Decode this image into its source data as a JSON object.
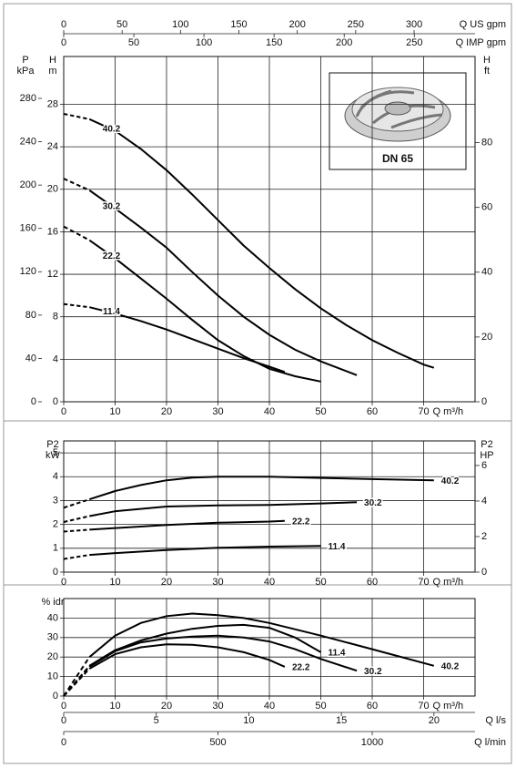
{
  "chart_data": [
    {
      "type": "line",
      "annotation": "DN 65",
      "x_label": "Q m³/h",
      "y_label": [
        "H",
        "m"
      ],
      "xlim": [
        0,
        80
      ],
      "xticks": [
        0,
        10,
        20,
        30,
        40,
        50,
        60,
        70
      ],
      "ylim": [
        0,
        32.5
      ],
      "yticks": [
        0,
        4,
        8,
        12,
        16,
        20,
        24,
        28
      ],
      "grid": true,
      "first_segment_dashed": true,
      "series_label_position": "start",
      "secondary_axes": [
        {
          "label": [
            "P",
            "kPa"
          ],
          "position": "left-outer",
          "lim": [
            0,
            318.7
          ],
          "ticks": [
            0,
            40,
            80,
            120,
            160,
            200,
            240,
            280
          ]
        },
        {
          "label": [
            "H",
            "ft"
          ],
          "position": "right",
          "lim": [
            0,
            106.6
          ],
          "ticks": [
            0,
            20,
            40,
            60,
            80
          ]
        },
        {
          "label": [
            "Q US gpm"
          ],
          "position": "top",
          "lim": [
            0,
            352.2
          ],
          "ticks": [
            0,
            50,
            100,
            150,
            200,
            250,
            300
          ]
        },
        {
          "label": [
            "Q IMP gpm"
          ],
          "position": "top-2",
          "lim": [
            0,
            293.3
          ],
          "ticks": [
            0,
            50,
            100,
            150,
            200,
            250
          ]
        }
      ],
      "series": [
        {
          "name": "40.2",
          "color": "#000000",
          "x": [
            0,
            5,
            10,
            15,
            20,
            25,
            30,
            35,
            40,
            45,
            50,
            55,
            60,
            65,
            70,
            72
          ],
          "values": [
            27.1,
            26.6,
            25.5,
            23.8,
            21.8,
            19.5,
            17.1,
            14.7,
            12.6,
            10.6,
            8.8,
            7.2,
            5.8,
            4.6,
            3.5,
            3.2
          ]
        },
        {
          "name": "30.2",
          "color": "#000000",
          "x": [
            0,
            5,
            10,
            15,
            20,
            25,
            30,
            35,
            40,
            45,
            50,
            57
          ],
          "values": [
            21,
            19.9,
            18.2,
            16.4,
            14.5,
            12.2,
            10,
            8,
            6.3,
            4.9,
            3.8,
            2.5
          ]
        },
        {
          "name": "22.2",
          "color": "#000000",
          "x": [
            0,
            5,
            10,
            15,
            20,
            25,
            30,
            35,
            40,
            45,
            50
          ],
          "values": [
            16.5,
            15.2,
            13.5,
            11.6,
            9.7,
            7.7,
            5.8,
            4.3,
            3.1,
            2.4,
            1.9
          ]
        },
        {
          "name": "11.4",
          "color": "#000000",
          "x": [
            0,
            5,
            10,
            15,
            20,
            25,
            30,
            35,
            40,
            43
          ],
          "values": [
            9.2,
            8.9,
            8.3,
            7.6,
            6.8,
            5.9,
            5,
            4.1,
            3.3,
            2.8
          ]
        }
      ]
    },
    {
      "type": "line",
      "x_label": "Q m³/h",
      "y_label": [
        "P2",
        "kW"
      ],
      "xlim": [
        0,
        80
      ],
      "xticks": [
        0,
        10,
        20,
        30,
        40,
        50,
        60,
        70
      ],
      "ylim": [
        0,
        5.5
      ],
      "yticks": [
        0,
        1,
        2,
        3,
        4,
        5
      ],
      "grid": true,
      "first_segment_dashed": true,
      "series_label_position": "end",
      "secondary_axes": [
        {
          "label": [
            "P2",
            "HP"
          ],
          "position": "right",
          "lim": [
            0,
            7.38
          ],
          "ticks": [
            0,
            2,
            4,
            6
          ]
        }
      ],
      "series": [
        {
          "name": "40.2",
          "color": "#000000",
          "x": [
            0,
            5,
            10,
            15,
            20,
            25,
            30,
            40,
            50,
            60,
            72
          ],
          "values": [
            2.7,
            3.05,
            3.4,
            3.65,
            3.85,
            3.96,
            4.0,
            4.0,
            3.95,
            3.9,
            3.85
          ]
        },
        {
          "name": "30.2",
          "color": "#000000",
          "x": [
            0,
            5,
            10,
            20,
            30,
            40,
            50,
            57
          ],
          "values": [
            2.1,
            2.35,
            2.55,
            2.75,
            2.8,
            2.82,
            2.88,
            2.93
          ]
        },
        {
          "name": "22.2",
          "color": "#000000",
          "x": [
            0,
            5,
            10,
            20,
            30,
            40,
            43
          ],
          "values": [
            1.7,
            1.78,
            1.85,
            1.98,
            2.07,
            2.12,
            2.15
          ]
        },
        {
          "name": "11.4",
          "color": "#000000",
          "x": [
            0,
            5,
            10,
            20,
            30,
            40,
            50
          ],
          "values": [
            0.55,
            0.72,
            0.8,
            0.93,
            1.02,
            1.07,
            1.1
          ]
        }
      ]
    },
    {
      "type": "line",
      "x_label": "Q m³/h",
      "y_label": [
        "% idr"
      ],
      "xlim": [
        0,
        80
      ],
      "xticks": [
        0,
        10,
        20,
        30,
        40,
        50,
        60,
        70
      ],
      "ylim": [
        0,
        50
      ],
      "yticks": [
        0,
        10,
        20,
        30,
        40
      ],
      "grid": true,
      "first_segment_dashed": true,
      "series_label_position": "end",
      "secondary_axes": [
        {
          "label": [
            "Q l/s"
          ],
          "position": "bottom-2",
          "lim": [
            0,
            22.22
          ],
          "ticks": [
            0,
            5,
            10,
            15,
            20
          ]
        },
        {
          "label": [
            "Q l/min"
          ],
          "position": "bottom-3",
          "lim": [
            0,
            1333.3
          ],
          "ticks": [
            0,
            500,
            1000
          ]
        }
      ],
      "series": [
        {
          "name": "40.2",
          "color": "#000000",
          "x": [
            0,
            5,
            10,
            15,
            20,
            25,
            30,
            35,
            40,
            50,
            60,
            72
          ],
          "values": [
            0,
            20,
            31,
            37.5,
            41,
            42.3,
            41.5,
            40,
            37.5,
            31,
            24,
            15.5
          ]
        },
        {
          "name": "11.4",
          "color": "#000000",
          "x": [
            0,
            5,
            10,
            15,
            20,
            25,
            30,
            35,
            40,
            45,
            50
          ],
          "values": [
            0,
            15.5,
            23.5,
            28.5,
            32,
            34.5,
            36,
            36.5,
            35,
            30,
            22.5
          ]
        },
        {
          "name": "30.2",
          "color": "#000000",
          "x": [
            0,
            5,
            10,
            15,
            20,
            25,
            30,
            35,
            40,
            45,
            50,
            57
          ],
          "values": [
            0,
            15,
            23,
            27.5,
            29.5,
            30.5,
            31,
            30,
            28,
            24,
            19,
            13
          ]
        },
        {
          "name": "22.2",
          "color": "#000000",
          "x": [
            0,
            5,
            10,
            15,
            20,
            25,
            30,
            35,
            40,
            43
          ],
          "values": [
            0,
            14,
            21.5,
            25,
            26.5,
            26.3,
            25,
            22.5,
            18.5,
            15
          ]
        }
      ]
    }
  ]
}
